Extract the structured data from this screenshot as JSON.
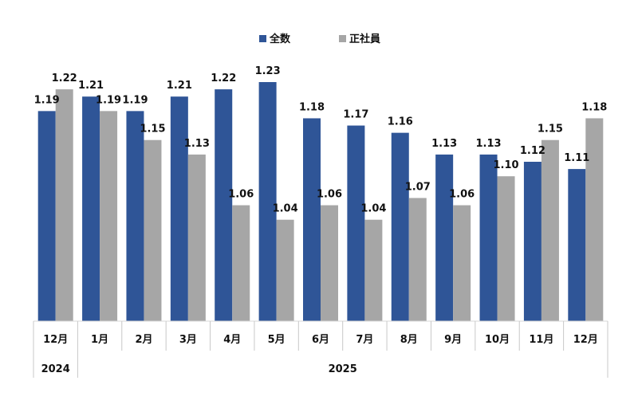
{
  "chart_data": {
    "type": "bar",
    "title": "",
    "xlabel": "",
    "ylabel": "",
    "ylim": [
      0.9,
      1.25
    ],
    "grid": false,
    "legend_position": "top-center",
    "categories": [
      "12月",
      "1月",
      "2月",
      "3月",
      "4月",
      "5月",
      "6月",
      "7月",
      "8月",
      "9月",
      "10月",
      "11月",
      "12月"
    ],
    "year_groups": [
      {
        "label": "2024",
        "span": 1
      },
      {
        "label": "2025",
        "span": 12
      }
    ],
    "series": [
      {
        "name": "全数",
        "color": "#2F5597",
        "values": [
          1.19,
          1.21,
          1.19,
          1.21,
          1.22,
          1.23,
          1.18,
          1.17,
          1.16,
          1.13,
          1.13,
          1.12,
          1.11
        ]
      },
      {
        "name": "正社員",
        "color": "#A6A6A6",
        "values": [
          1.22,
          1.19,
          1.15,
          1.13,
          1.06,
          1.04,
          1.06,
          1.04,
          1.07,
          1.06,
          1.1,
          1.15,
          1.18
        ]
      }
    ]
  }
}
